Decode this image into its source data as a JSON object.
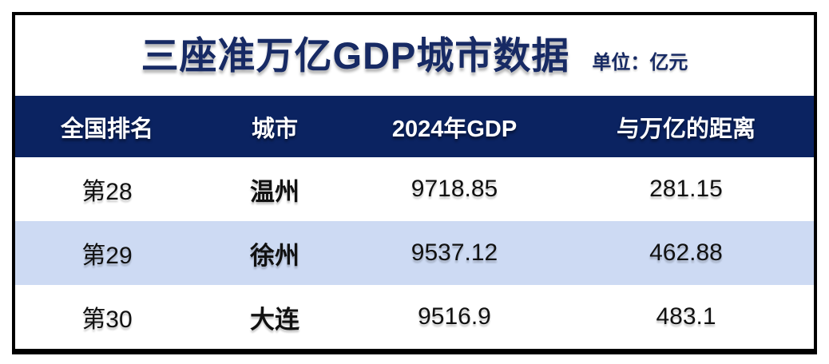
{
  "title": "三座准万亿GDP城市数据",
  "unit_label": "单位：亿元",
  "table": {
    "columns": [
      "全国排名",
      "城市",
      "2024年GDP",
      "与万亿的距离"
    ],
    "rows": [
      {
        "rank": "第28",
        "city": "温州",
        "gdp": "9718.85",
        "distance": "281.15"
      },
      {
        "rank": "第29",
        "city": "徐州",
        "gdp": "9537.12",
        "distance": "462.88"
      },
      {
        "rank": "第30",
        "city": "大连",
        "gdp": "9516.9",
        "distance": "483.1"
      }
    ]
  },
  "chart_data": {
    "type": "table",
    "title": "三座准万亿GDP城市数据",
    "unit": "亿元",
    "columns": [
      "全国排名",
      "城市",
      "2024年GDP",
      "与万亿的距离"
    ],
    "rows": [
      [
        "第28",
        "温州",
        9718.85,
        281.15
      ],
      [
        "第29",
        "徐州",
        9537.12,
        462.88
      ],
      [
        "第30",
        "大连",
        9516.9,
        483.1
      ]
    ]
  },
  "colors": {
    "header_bg": "#0B2361",
    "alt_row_bg": "#CDDAF3",
    "title_color": "#172A64",
    "border_color": "#000000"
  }
}
